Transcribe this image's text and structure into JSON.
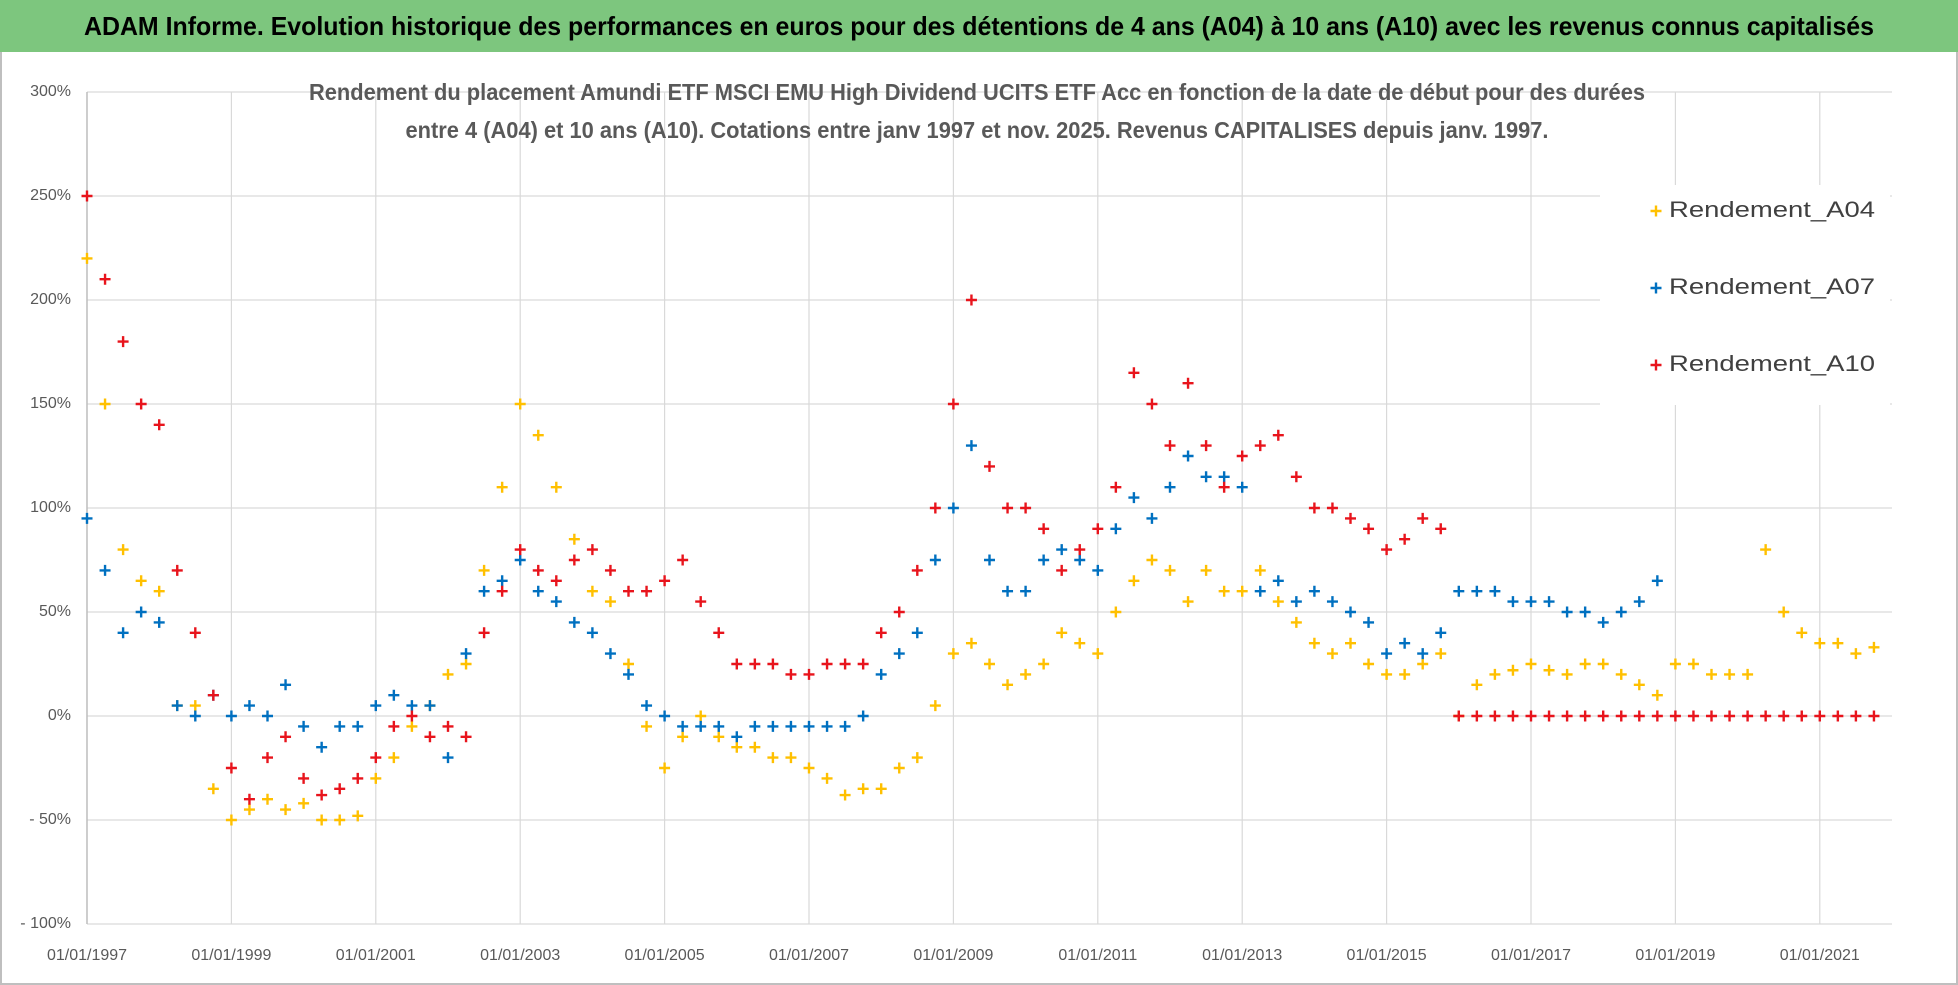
{
  "header": {
    "title": "ADAM Informe. Evolution historique des performances en euros pour des détentions de 4 ans (A04) à 10 ans (A10) avec les revenus connus capitalisés"
  },
  "chart_data": {
    "type": "scatter",
    "title": [
      "Rendement du placement Amundi ETF MSCI EMU High Dividend UCITS ETF Acc en fonction de la date de début pour des durées",
      "entre 4 (A04) et 10 ans (A10).  Cotations entre janv 1997 et nov. 2025. Revenus CAPITALISES depuis janv. 1997."
    ],
    "x": [
      "01/01/1997",
      "01/04/1997",
      "01/07/1997",
      "01/10/1997",
      "01/01/1998",
      "01/04/1998",
      "01/07/1998",
      "01/10/1998",
      "01/01/1999",
      "01/04/1999",
      "01/07/1999",
      "01/10/1999",
      "01/01/2000",
      "01/04/2000",
      "01/07/2000",
      "01/10/2000",
      "01/01/2001",
      "01/04/2001",
      "01/07/2001",
      "01/10/2001",
      "01/01/2002",
      "01/04/2002",
      "01/07/2002",
      "01/10/2002",
      "01/01/2003",
      "01/04/2003",
      "01/07/2003",
      "01/10/2003",
      "01/01/2004",
      "01/04/2004",
      "01/07/2004",
      "01/10/2004",
      "01/01/2005",
      "01/04/2005",
      "01/07/2005",
      "01/10/2005",
      "01/01/2006",
      "01/04/2006",
      "01/07/2006",
      "01/10/2006",
      "01/01/2007",
      "01/04/2007",
      "01/07/2007",
      "01/10/2007",
      "01/01/2008",
      "01/04/2008",
      "01/07/2008",
      "01/10/2008",
      "01/01/2009",
      "01/04/2009",
      "01/07/2009",
      "01/10/2009",
      "01/01/2010",
      "01/04/2010",
      "01/07/2010",
      "01/10/2010",
      "01/01/2011",
      "01/04/2011",
      "01/07/2011",
      "01/10/2011",
      "01/01/2012",
      "01/04/2012",
      "01/07/2012",
      "01/10/2012",
      "01/01/2013",
      "01/04/2013",
      "01/07/2013",
      "01/10/2013",
      "01/01/2014",
      "01/04/2014",
      "01/07/2014",
      "01/10/2014",
      "01/01/2015",
      "01/04/2015",
      "01/07/2015",
      "01/10/2015",
      "01/01/2016",
      "01/04/2016",
      "01/07/2016",
      "01/10/2016",
      "01/01/2017",
      "01/04/2017",
      "01/07/2017",
      "01/10/2017",
      "01/01/2018",
      "01/04/2018",
      "01/07/2018",
      "01/10/2018",
      "01/01/2019",
      "01/04/2019",
      "01/07/2019",
      "01/10/2019",
      "01/01/2020",
      "01/04/2020",
      "01/07/2020",
      "01/10/2020",
      "01/01/2021",
      "01/04/2021",
      "01/07/2021",
      "01/10/2021"
    ],
    "series": [
      {
        "name": "Rendement_A04",
        "color": "#ffc000",
        "values": [
          220,
          150,
          80,
          65,
          60,
          5,
          5,
          -35,
          -50,
          -45,
          -40,
          -45,
          -42,
          -50,
          -50,
          -48,
          -30,
          -20,
          -5,
          5,
          20,
          25,
          70,
          110,
          150,
          135,
          110,
          85,
          60,
          55,
          25,
          -5,
          -25,
          -10,
          0,
          -10,
          -15,
          -15,
          -20,
          -20,
          -25,
          -30,
          -38,
          -35,
          -35,
          -25,
          -20,
          5,
          30,
          35,
          25,
          15,
          20,
          25,
          40,
          35,
          30,
          50,
          65,
          75,
          70,
          55,
          70,
          60,
          60,
          70,
          55,
          45,
          35,
          30,
          35,
          25,
          20,
          20,
          25,
          30,
          0,
          15,
          20,
          22,
          25,
          22,
          20,
          25,
          25,
          20,
          15,
          10,
          25,
          25,
          20,
          20,
          20,
          80,
          50,
          40,
          35,
          35,
          30,
          33
        ]
      },
      {
        "name": "Rendement_A07",
        "color": "#0070c0",
        "values": [
          95,
          70,
          40,
          50,
          45,
          5,
          0,
          10,
          0,
          5,
          0,
          15,
          -5,
          -15,
          -5,
          -5,
          5,
          10,
          5,
          5,
          -20,
          30,
          60,
          65,
          75,
          60,
          55,
          45,
          40,
          30,
          20,
          5,
          0,
          -5,
          -5,
          -5,
          -10,
          -5,
          -5,
          -5,
          -5,
          -5,
          -5,
          0,
          20,
          30,
          40,
          75,
          100,
          130,
          75,
          60,
          60,
          75,
          80,
          75,
          70,
          90,
          105,
          95,
          110,
          125,
          115,
          115,
          110,
          60,
          65,
          55,
          60,
          55,
          50,
          45,
          30,
          35,
          30,
          40,
          60,
          60,
          60,
          55,
          55,
          55,
          50,
          50,
          45,
          50,
          55,
          65,
          null,
          null,
          null,
          null,
          null,
          null,
          null,
          null,
          null,
          null,
          null,
          null
        ]
      },
      {
        "name": "Rendement_A10",
        "color": "#e8141c",
        "values": [
          250,
          210,
          180,
          150,
          140,
          70,
          40,
          10,
          -25,
          -40,
          -20,
          -10,
          -30,
          -38,
          -35,
          -30,
          -20,
          -5,
          0,
          -10,
          -5,
          -10,
          40,
          60,
          80,
          70,
          65,
          75,
          80,
          70,
          60,
          60,
          65,
          75,
          55,
          40,
          25,
          25,
          25,
          20,
          20,
          25,
          25,
          25,
          40,
          50,
          70,
          100,
          150,
          200,
          120,
          100,
          100,
          90,
          70,
          80,
          90,
          110,
          165,
          150,
          130,
          160,
          130,
          110,
          125,
          130,
          135,
          115,
          100,
          100,
          95,
          90,
          80,
          85,
          95,
          90,
          0,
          0,
          0,
          0,
          0,
          0,
          0,
          0,
          0,
          0,
          0,
          0,
          0,
          0,
          0,
          0,
          0,
          0,
          0,
          0,
          0,
          0,
          0,
          0
        ]
      }
    ],
    "xlim": [
      "01/01/1997",
      "01/01/2022"
    ],
    "xticks": [
      "01/01/1997",
      "01/01/1999",
      "01/01/2001",
      "01/01/2003",
      "01/01/2005",
      "01/01/2007",
      "01/01/2009",
      "01/01/2011",
      "01/01/2013",
      "01/01/2015",
      "01/01/2017",
      "01/01/2019",
      "01/01/2021"
    ],
    "ylim": [
      -100,
      300
    ],
    "yticks": [
      {
        "value": -100,
        "label": "- 100%"
      },
      {
        "value": -50,
        "label": "- 50%"
      },
      {
        "value": 0,
        "label": "0%"
      },
      {
        "value": 50,
        "label": "50%"
      },
      {
        "value": 100,
        "label": "100%"
      },
      {
        "value": 150,
        "label": "150%"
      },
      {
        "value": 200,
        "label": "200%"
      },
      {
        "value": 250,
        "label": "250%"
      },
      {
        "value": 300,
        "label": "300%"
      }
    ],
    "grid": true,
    "legend": "upper right"
  }
}
